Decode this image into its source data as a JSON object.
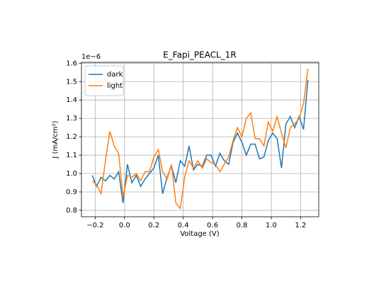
{
  "chart_data": {
    "type": "line",
    "title": "E_Fapi_PEACL_1R",
    "xlabel": "Voltage (V)",
    "ylabel": "J (mA/cm²)",
    "y_offset_label": "1e−6",
    "x": [
      -0.22,
      -0.19,
      -0.16,
      -0.13,
      -0.1,
      -0.07,
      -0.04,
      -0.01,
      0.02,
      0.05,
      0.08,
      0.11,
      0.14,
      0.17,
      0.2,
      0.23,
      0.26,
      0.29,
      0.32,
      0.35,
      0.38,
      0.41,
      0.44,
      0.47,
      0.5,
      0.53,
      0.56,
      0.59,
      0.62,
      0.65,
      0.68,
      0.71,
      0.74,
      0.77,
      0.8,
      0.83,
      0.86,
      0.89,
      0.92,
      0.95,
      0.98,
      1.01,
      1.04,
      1.07,
      1.1,
      1.13,
      1.16,
      1.19,
      1.22,
      1.25
    ],
    "series": [
      {
        "name": "dark",
        "color": "#1f77b4",
        "values": [
          0.99,
          0.93,
          0.98,
          0.96,
          0.99,
          0.97,
          1.01,
          0.84,
          1.05,
          0.95,
          0.99,
          0.93,
          0.97,
          1.0,
          1.03,
          1.1,
          0.89,
          0.98,
          1.04,
          0.95,
          1.07,
          1.04,
          1.15,
          1.02,
          1.05,
          1.04,
          1.1,
          1.1,
          1.04,
          1.11,
          1.07,
          1.05,
          1.17,
          1.22,
          1.17,
          1.1,
          1.16,
          1.16,
          1.08,
          1.09,
          1.18,
          1.22,
          1.19,
          1.03,
          1.27,
          1.31,
          1.25,
          1.31,
          1.24,
          1.51
        ]
      },
      {
        "name": "light",
        "color": "#ff7f0e",
        "values": [
          0.96,
          0.94,
          0.89,
          1.07,
          1.23,
          1.15,
          1.11,
          0.87,
          0.99,
          0.98,
          1.0,
          0.96,
          1.01,
          1.01,
          1.09,
          1.13,
          1.01,
          0.97,
          1.05,
          0.84,
          0.81,
          0.98,
          1.07,
          1.03,
          1.07,
          1.03,
          1.08,
          1.06,
          1.05,
          1.01,
          1.05,
          1.09,
          1.18,
          1.25,
          1.2,
          1.3,
          1.33,
          1.19,
          1.19,
          1.15,
          1.28,
          1.23,
          1.31,
          1.22,
          1.14,
          1.25,
          1.27,
          1.3,
          1.38,
          1.57
        ]
      }
    ],
    "xlim": [
      -0.2935,
      1.3235
    ],
    "ylim": [
      0.765,
      1.605
    ],
    "xticks": [
      {
        "value": -0.2,
        "label": "−0.2"
      },
      {
        "value": 0,
        "label": "0.0"
      },
      0.2,
      0.4,
      0.6,
      0.8,
      {
        "value": 1,
        "label": "1.0"
      },
      1.2
    ],
    "yticks": [
      0.8,
      0.9,
      {
        "value": 1,
        "label": "1.0"
      },
      1.1,
      1.2,
      1.3,
      1.4,
      1.5,
      1.6
    ],
    "grid": true,
    "legend": "upper left"
  }
}
